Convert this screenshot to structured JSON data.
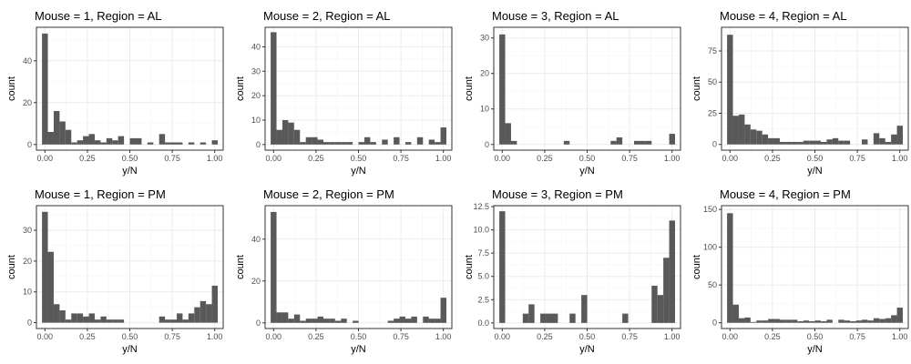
{
  "chart_data": [
    {
      "type": "bar",
      "title": "Mouse = 1, Region = AL",
      "xlabel": "y/N",
      "ylabel": "count",
      "xlim": [
        -0.05,
        1.05
      ],
      "ylim": [
        -2.7,
        56
      ],
      "x_ticks": [
        0,
        0.25,
        0.5,
        0.75,
        1
      ],
      "x_tick_labels": [
        "0.00",
        "0.25",
        "0.50",
        "0.75",
        "1.00"
      ],
      "y_ticks": [
        0,
        20,
        40
      ],
      "y_tick_labels": [
        "0",
        "20",
        "40"
      ],
      "bin_width": 0.0345,
      "values": [
        53,
        6,
        16,
        11,
        7,
        1,
        2,
        4,
        5,
        2,
        1,
        3,
        2,
        4,
        0,
        3,
        3,
        0,
        1,
        0,
        5,
        1,
        1,
        1,
        0,
        1,
        0,
        1,
        0,
        2
      ]
    },
    {
      "type": "bar",
      "title": "Mouse = 2, Region = AL",
      "xlabel": "y/N",
      "ylabel": "count",
      "xlim": [
        -0.05,
        1.05
      ],
      "ylim": [
        -2.3,
        48
      ],
      "x_ticks": [
        0,
        0.25,
        0.5,
        0.75,
        1
      ],
      "x_tick_labels": [
        "0.00",
        "0.25",
        "0.50",
        "0.75",
        "1.00"
      ],
      "y_ticks": [
        0,
        10,
        20,
        30,
        40
      ],
      "y_tick_labels": [
        "0",
        "10",
        "20",
        "30",
        "40"
      ],
      "bin_width": 0.0345,
      "values": [
        46,
        6,
        10,
        9,
        6,
        1,
        3,
        3,
        2,
        1,
        1,
        1,
        1,
        1,
        0,
        1,
        3,
        1,
        0,
        2,
        0,
        3,
        0,
        1,
        0,
        3,
        0,
        2,
        1,
        7
      ]
    },
    {
      "type": "bar",
      "title": "Mouse = 3, Region = AL",
      "xlabel": "y/N",
      "ylabel": "count",
      "xlim": [
        -0.05,
        1.05
      ],
      "ylim": [
        -1.6,
        33
      ],
      "x_ticks": [
        0,
        0.25,
        0.5,
        0.75,
        1
      ],
      "x_tick_labels": [
        "0.00",
        "0.25",
        "0.50",
        "0.75",
        "1.00"
      ],
      "y_ticks": [
        0,
        10,
        20,
        30
      ],
      "y_tick_labels": [
        "0",
        "10",
        "20",
        "30"
      ],
      "bin_width": 0.0345,
      "values": [
        31,
        6,
        1,
        0,
        0,
        0,
        0,
        0,
        0,
        0,
        0,
        1,
        0,
        0,
        0,
        0,
        0,
        0,
        0,
        1,
        2,
        0,
        0,
        1,
        1,
        1,
        0,
        0,
        0,
        3
      ]
    },
    {
      "type": "bar",
      "title": "Mouse = 4, Region = AL",
      "xlabel": "y/N",
      "ylabel": "count",
      "xlim": [
        -0.05,
        1.05
      ],
      "ylim": [
        -4.6,
        94
      ],
      "x_ticks": [
        0,
        0.25,
        0.5,
        0.75,
        1
      ],
      "x_tick_labels": [
        "0.00",
        "0.25",
        "0.50",
        "0.75",
        "1.00"
      ],
      "y_ticks": [
        0,
        25,
        50,
        75
      ],
      "y_tick_labels": [
        "0",
        "25",
        "50",
        "75"
      ],
      "bin_width": 0.0345,
      "values": [
        88,
        23,
        24,
        16,
        12,
        11,
        8,
        5,
        5,
        2,
        2,
        2,
        2,
        3,
        3,
        3,
        2,
        4,
        5,
        3,
        3,
        0,
        0,
        4,
        0,
        9,
        5,
        2,
        8,
        15
      ]
    },
    {
      "type": "bar",
      "title": "Mouse = 1, Region = PM",
      "xlabel": "y/N",
      "ylabel": "count",
      "xlim": [
        -0.05,
        1.05
      ],
      "ylim": [
        -1.9,
        38
      ],
      "x_ticks": [
        0,
        0.25,
        0.5,
        0.75,
        1
      ],
      "x_tick_labels": [
        "0.00",
        "0.25",
        "0.50",
        "0.75",
        "1.00"
      ],
      "y_ticks": [
        0,
        10,
        20,
        30
      ],
      "y_tick_labels": [
        "0",
        "10",
        "20",
        "30"
      ],
      "bin_width": 0.0345,
      "values": [
        36,
        23,
        6,
        4,
        1,
        3,
        3,
        2,
        3,
        1,
        2,
        1,
        1,
        1,
        0,
        0,
        0,
        0,
        0,
        0,
        2,
        1,
        1,
        3,
        1,
        3,
        5,
        7,
        6,
        12
      ]
    },
    {
      "type": "bar",
      "title": "Mouse = 2, Region = PM",
      "xlabel": "y/N",
      "ylabel": "count",
      "xlim": [
        -0.05,
        1.05
      ],
      "ylim": [
        -2.7,
        56
      ],
      "x_ticks": [
        0,
        0.25,
        0.5,
        0.75,
        1
      ],
      "x_tick_labels": [
        "0.00",
        "0.25",
        "0.50",
        "0.75",
        "1.00"
      ],
      "y_ticks": [
        0,
        20,
        40
      ],
      "y_tick_labels": [
        "0",
        "20",
        "40"
      ],
      "bin_width": 0.0345,
      "values": [
        53,
        5,
        5,
        2,
        4,
        1,
        2,
        2,
        3,
        2,
        2,
        1,
        2,
        0,
        1,
        0,
        0,
        0,
        0,
        0,
        1,
        2,
        3,
        2,
        3,
        0,
        3,
        2,
        2,
        12
      ]
    },
    {
      "type": "bar",
      "title": "Mouse = 3, Region = PM",
      "xlabel": "y/N",
      "ylabel": "count",
      "xlim": [
        -0.05,
        1.05
      ],
      "ylim": [
        -0.6,
        12.6
      ],
      "x_ticks": [
        0,
        0.25,
        0.5,
        0.75,
        1
      ],
      "x_tick_labels": [
        "0.00",
        "0.25",
        "0.50",
        "0.75",
        "1.00"
      ],
      "y_ticks": [
        0,
        2.5,
        5,
        7.5,
        10,
        12.5
      ],
      "y_tick_labels": [
        "0.0",
        "2.5",
        "5.0",
        "7.5",
        "10.0",
        "12.5"
      ],
      "bin_width": 0.0345,
      "values": [
        12,
        0,
        0,
        0,
        1,
        2,
        0,
        1,
        1,
        1,
        0,
        0,
        1,
        0,
        3,
        0,
        0,
        0,
        0,
        0,
        0,
        1,
        0,
        0,
        0,
        0,
        4,
        3,
        7,
        11
      ]
    },
    {
      "type": "bar",
      "title": "Mouse = 4, Region = PM",
      "xlabel": "y/N",
      "ylabel": "count",
      "xlim": [
        -0.05,
        1.05
      ],
      "ylim": [
        -7.6,
        155
      ],
      "x_ticks": [
        0,
        0.25,
        0.5,
        0.75,
        1
      ],
      "x_tick_labels": [
        "0.00",
        "0.25",
        "0.50",
        "0.75",
        "1.00"
      ],
      "y_ticks": [
        0,
        50,
        100,
        150
      ],
      "y_tick_labels": [
        "0",
        "50",
        "100",
        "150"
      ],
      "bin_width": 0.0345,
      "values": [
        145,
        24,
        6,
        7,
        1,
        3,
        3,
        5,
        5,
        4,
        4,
        4,
        2,
        3,
        2,
        3,
        2,
        4,
        0,
        4,
        3,
        2,
        3,
        4,
        3,
        6,
        5,
        6,
        10,
        20
      ]
    }
  ],
  "colors": {
    "bar": "#595959",
    "panel_border": "#333333",
    "grid_major": "#ebebeb",
    "grid_minor": "#f5f5f5",
    "text": "#000000",
    "tick_text": "#4d4d4d"
  }
}
